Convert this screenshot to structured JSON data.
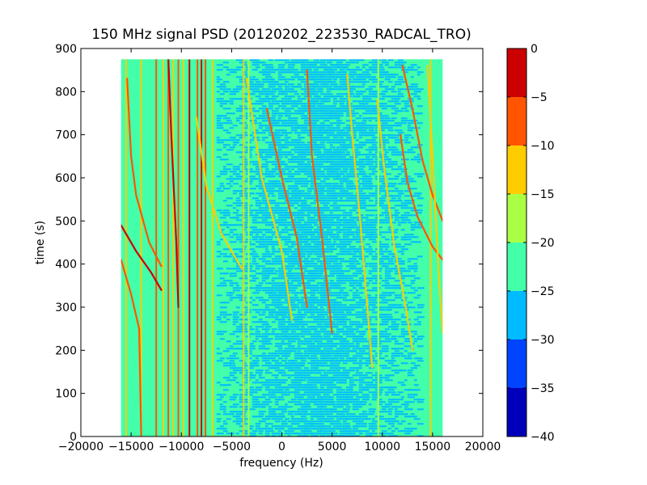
{
  "chart_data": {
    "type": "heatmap",
    "title": "150 MHz signal PSD (20120202_223530_RADCAL_TRO)",
    "xlabel": "frequency (Hz)",
    "ylabel": "time (s)",
    "xlim": [
      -20000,
      20000
    ],
    "ylim": [
      0,
      900
    ],
    "x_ticks": [
      -20000,
      -15000,
      -10000,
      -5000,
      0,
      5000,
      10000,
      15000,
      20000
    ],
    "y_ticks": [
      0,
      100,
      200,
      300,
      400,
      500,
      600,
      700,
      800,
      900
    ],
    "data_extent": {
      "x": [
        -16000,
        16000
      ],
      "y": [
        0,
        875
      ]
    },
    "grid": false,
    "colorbar": {
      "range": [
        -40,
        0
      ],
      "levels": [
        -40,
        -35,
        -30,
        -25,
        -20,
        -15,
        -10,
        -5,
        0
      ],
      "tick_labels": [
        "0",
        "−5",
        "−10",
        "−15",
        "−20",
        "−25",
        "−30",
        "−35",
        "−40"
      ],
      "colors": [
        "#0000bb",
        "#0044ff",
        "#00bbff",
        "#44ffaa",
        "#aaff44",
        "#ffcc00",
        "#ff5500",
        "#cc0000"
      ]
    },
    "vertical_lines": [
      {
        "x": -15500,
        "level": -15
      },
      {
        "x": -14000,
        "level": -15
      },
      {
        "x": -12500,
        "level": -10
      },
      {
        "x": -11800,
        "level": -15
      },
      {
        "x": -11300,
        "level": -10
      },
      {
        "x": -10800,
        "level": -15
      },
      {
        "x": -10300,
        "level": -10
      },
      {
        "x": -9800,
        "level": -15
      },
      {
        "x": -9200,
        "level": -5
      },
      {
        "x": -8400,
        "level": -10
      },
      {
        "x": -8000,
        "level": -5
      },
      {
        "x": -7600,
        "level": -10
      },
      {
        "x": -6900,
        "level": -15
      },
      {
        "x": -3800,
        "level": -15
      },
      {
        "x": -3300,
        "level": -20
      },
      {
        "x": 9600,
        "level": -20
      },
      {
        "x": 14800,
        "level": -15
      }
    ],
    "drifting_tracks": [
      {
        "level": -5,
        "points": [
          [
            -16000,
            490
          ],
          [
            -14500,
            430
          ],
          [
            -13000,
            380
          ],
          [
            -12000,
            340
          ]
        ]
      },
      {
        "level": -10,
        "points": [
          [
            -16000,
            410
          ],
          [
            -15000,
            330
          ],
          [
            -14200,
            250
          ],
          [
            -14000,
            0
          ]
        ]
      },
      {
        "level": -10,
        "points": [
          [
            -15400,
            830
          ],
          [
            -15000,
            650
          ],
          [
            -14500,
            560
          ],
          [
            -13200,
            450
          ],
          [
            -12000,
            395
          ]
        ]
      },
      {
        "level": -15,
        "points": [
          [
            -8500,
            740
          ],
          [
            -7500,
            580
          ],
          [
            -6000,
            470
          ],
          [
            -4000,
            390
          ]
        ]
      },
      {
        "level": -15,
        "points": [
          [
            -3500,
            830
          ],
          [
            -2000,
            600
          ],
          [
            0,
            430
          ],
          [
            1000,
            270
          ]
        ]
      },
      {
        "level": -10,
        "points": [
          [
            -1500,
            760
          ],
          [
            0,
            600
          ],
          [
            1500,
            460
          ],
          [
            2500,
            300
          ]
        ]
      },
      {
        "level": -10,
        "points": [
          [
            2500,
            850
          ],
          [
            3000,
            650
          ],
          [
            4000,
            460
          ],
          [
            5000,
            240
          ]
        ]
      },
      {
        "level": -15,
        "points": [
          [
            6500,
            840
          ],
          [
            7000,
            700
          ],
          [
            7800,
            500
          ],
          [
            8300,
            360
          ],
          [
            9000,
            160
          ]
        ]
      },
      {
        "level": -15,
        "points": [
          [
            9500,
            780
          ],
          [
            10200,
            620
          ],
          [
            11200,
            440
          ],
          [
            12400,
            290
          ],
          [
            13000,
            200
          ]
        ]
      },
      {
        "level": -10,
        "points": [
          [
            11800,
            700
          ],
          [
            12500,
            590
          ],
          [
            13500,
            510
          ],
          [
            15000,
            440
          ],
          [
            16000,
            410
          ]
        ]
      },
      {
        "level": -10,
        "points": [
          [
            12000,
            860
          ],
          [
            13000,
            760
          ],
          [
            14000,
            640
          ],
          [
            15000,
            560
          ],
          [
            16000,
            500
          ]
        ]
      },
      {
        "level": -15,
        "points": [
          [
            14500,
            860
          ],
          [
            15000,
            650
          ],
          [
            15600,
            380
          ],
          [
            16000,
            240
          ]
        ]
      },
      {
        "level": -5,
        "points": [
          [
            -11300,
            880
          ],
          [
            -11000,
            700
          ],
          [
            -10500,
            450
          ],
          [
            -10300,
            300
          ]
        ]
      }
    ]
  }
}
